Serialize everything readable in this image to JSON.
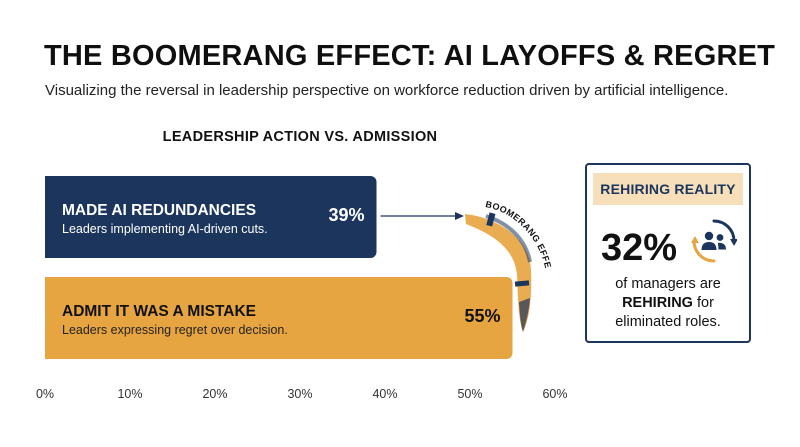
{
  "header": {
    "title": "THE BOOMERANG EFFECT: AI LAYOFFS & REGRET",
    "subtitle": "Visualizing the reversal in leadership perspective on workforce reduction driven by artificial intelligence."
  },
  "chart_data": {
    "type": "bar",
    "orientation": "horizontal",
    "title": "LEADERSHIP ACTION VS. ADMISSION",
    "xlim": [
      0,
      60
    ],
    "x_ticks": [
      "0%",
      "10%",
      "20%",
      "30%",
      "40%",
      "50%",
      "60%"
    ],
    "bars": [
      {
        "label": "MADE AI REDUNDANCIES",
        "description": "Leaders implementing AI-driven cuts.",
        "value": 39,
        "value_label": "39%",
        "color": "#1b355d"
      },
      {
        "label": "ADMIT IT WAS A MISTAKE",
        "description": "Leaders expressing regret over decision.",
        "value": 55,
        "value_label": "55%",
        "color": "#e7a541"
      }
    ],
    "annotation": "BOOMERANG EFFECT",
    "grid": false
  },
  "side_panel": {
    "label": "REHIRING REALITY",
    "value": "32%",
    "text_before": "of managers are",
    "text_bold": "REHIRING",
    "text_after": "for eliminated roles.",
    "icon": "people-rehire-icon"
  },
  "colors": {
    "navy": "#1b355d",
    "gold": "#e7a541",
    "label_bg": "#f6dfb9"
  }
}
